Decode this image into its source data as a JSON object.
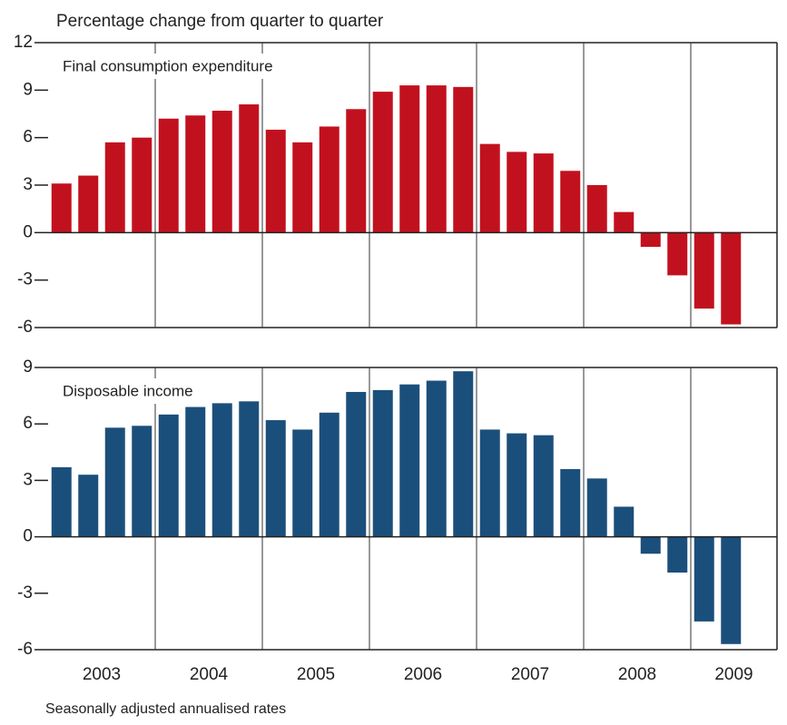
{
  "title": "Percentage change from quarter to quarter",
  "note": "Seasonally adjusted annualised rates",
  "years": [
    "2003",
    "2004",
    "2005",
    "2006",
    "2007",
    "2008",
    "2009"
  ],
  "chart_data": [
    {
      "type": "bar",
      "label": "Final consumption expenditure",
      "color": "#c2111e",
      "categories": [
        null,
        null,
        null,
        null,
        null,
        null,
        null,
        null,
        null,
        null,
        null,
        null,
        null,
        null,
        null,
        null,
        null,
        null,
        null,
        null,
        null,
        null,
        null,
        null,
        null,
        null
      ],
      "values": [
        3.1,
        3.6,
        5.7,
        6.0,
        7.2,
        7.4,
        7.7,
        8.1,
        6.5,
        5.7,
        6.7,
        7.8,
        8.9,
        9.3,
        9.3,
        9.2,
        5.6,
        5.1,
        5.0,
        3.9,
        3.0,
        1.3,
        -0.9,
        -2.7,
        -4.8,
        -5.8
      ],
      "ylim": [
        -6,
        12
      ],
      "yticks": [
        -6,
        -3,
        0,
        3,
        6,
        9,
        12
      ]
    },
    {
      "type": "bar",
      "label": "Disposable income",
      "color": "#1b4f7b",
      "categories": [
        null,
        null,
        null,
        null,
        null,
        null,
        null,
        null,
        null,
        null,
        null,
        null,
        null,
        null,
        null,
        null,
        null,
        null,
        null,
        null,
        null,
        null,
        null,
        null,
        null,
        null
      ],
      "values": [
        3.7,
        3.3,
        5.8,
        5.9,
        6.5,
        6.9,
        7.1,
        7.2,
        6.2,
        5.7,
        6.6,
        7.7,
        7.8,
        8.1,
        8.3,
        8.8,
        5.7,
        5.5,
        5.4,
        3.6,
        3.1,
        1.6,
        -0.9,
        -1.9,
        -4.5,
        -5.7
      ],
      "ylim": [
        -6,
        9
      ],
      "yticks": [
        -6,
        -3,
        0,
        3,
        6,
        9
      ]
    }
  ]
}
